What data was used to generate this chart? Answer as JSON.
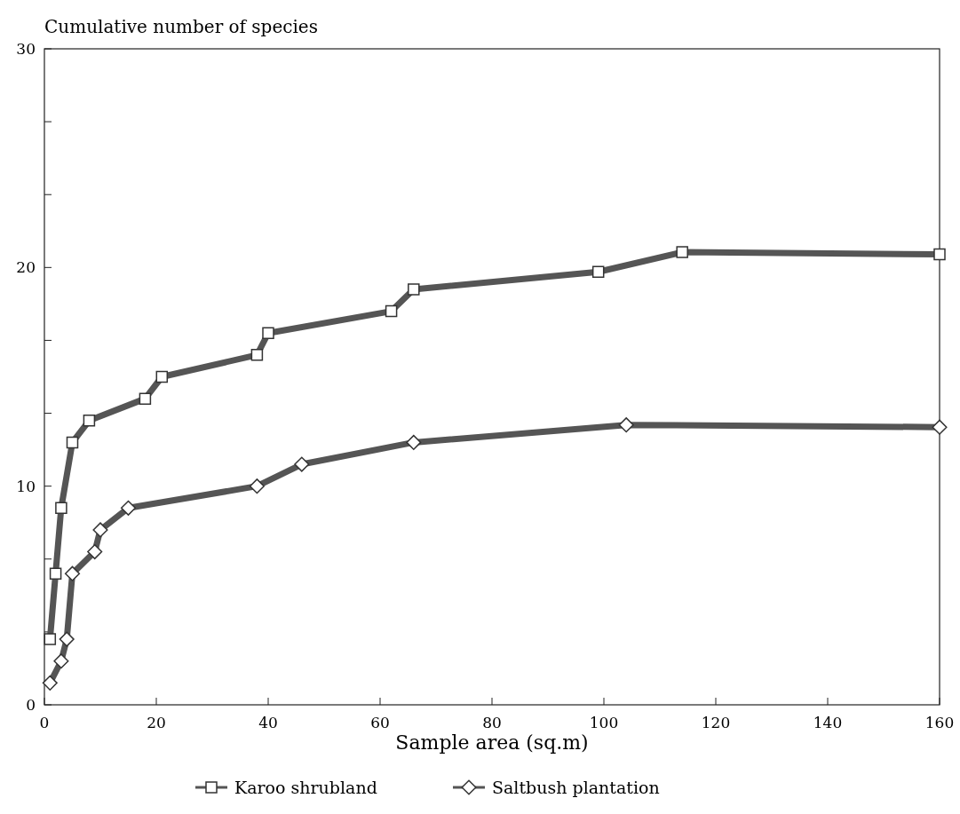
{
  "chart_data": {
    "type": "line",
    "ylabel": "Cumulative number of species",
    "xlabel": "Sample area (sq.m)",
    "xlim": [
      0,
      160
    ],
    "xticks": [
      0,
      20,
      40,
      60,
      80,
      100,
      120,
      140,
      160
    ],
    "ylim": [
      0,
      30
    ],
    "yticks": [
      0,
      {
        "value": 3.333,
        "label": null
      },
      {
        "value": 6.667,
        "label": null
      },
      10,
      {
        "value": 13.333,
        "label": null
      },
      {
        "value": 16.667,
        "label": null
      },
      20,
      {
        "value": 23.333,
        "label": null
      },
      {
        "value": 26.667,
        "label": null
      },
      30
    ],
    "grid": false,
    "legend": "bottom",
    "line_style": "solid",
    "series": [
      {
        "name": "Karoo shrubland",
        "color": "#555555",
        "marker": "square",
        "x": [
          1,
          2,
          3,
          5,
          8,
          18,
          21,
          38,
          40,
          62,
          66,
          99,
          114,
          160
        ],
        "values": [
          3,
          6,
          9,
          12,
          13,
          14,
          15,
          16,
          17,
          18,
          19,
          19.8,
          20.7,
          20.6
        ]
      },
      {
        "name": "Saltbush plantation",
        "color": "#555555",
        "marker": "diamond",
        "x": [
          1,
          3,
          4,
          5,
          9,
          10,
          15,
          38,
          46,
          66,
          104,
          160
        ],
        "values": [
          1,
          2,
          3,
          6,
          7,
          8,
          9,
          10,
          11,
          12,
          12.8,
          12.7
        ]
      }
    ]
  }
}
